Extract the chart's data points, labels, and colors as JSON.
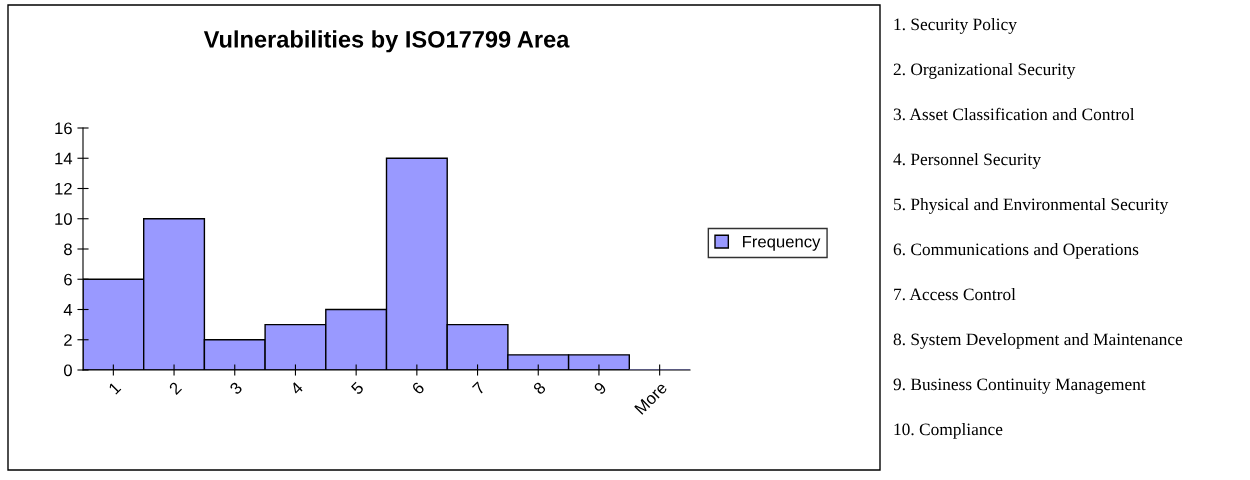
{
  "chart_data": {
    "type": "bar",
    "title": "Vulnerabilities by ISO17799 Area",
    "categories": [
      "1",
      "2",
      "3",
      "4",
      "5",
      "6",
      "7",
      "8",
      "9",
      "More"
    ],
    "series": [
      {
        "name": "Frequency",
        "color": "#9999ff",
        "values": [
          6,
          10,
          2,
          3,
          4,
          14,
          3,
          1,
          1,
          0
        ]
      }
    ],
    "ylim": [
      0,
      16
    ],
    "yticks": [
      0,
      2,
      4,
      6,
      8,
      10,
      12,
      14,
      16
    ],
    "grid": false,
    "legend": "right",
    "annotations": [
      "1. Security Policy",
      "2. Organizational Security",
      "3. Asset Classification and Control",
      "4. Personnel Security",
      "5. Physical and Environmental Security",
      "6. Communications and Operations",
      "7. Access Control",
      "8. System Development and Maintenance",
      "9. Business Continuity Management",
      "10. Compliance"
    ]
  }
}
